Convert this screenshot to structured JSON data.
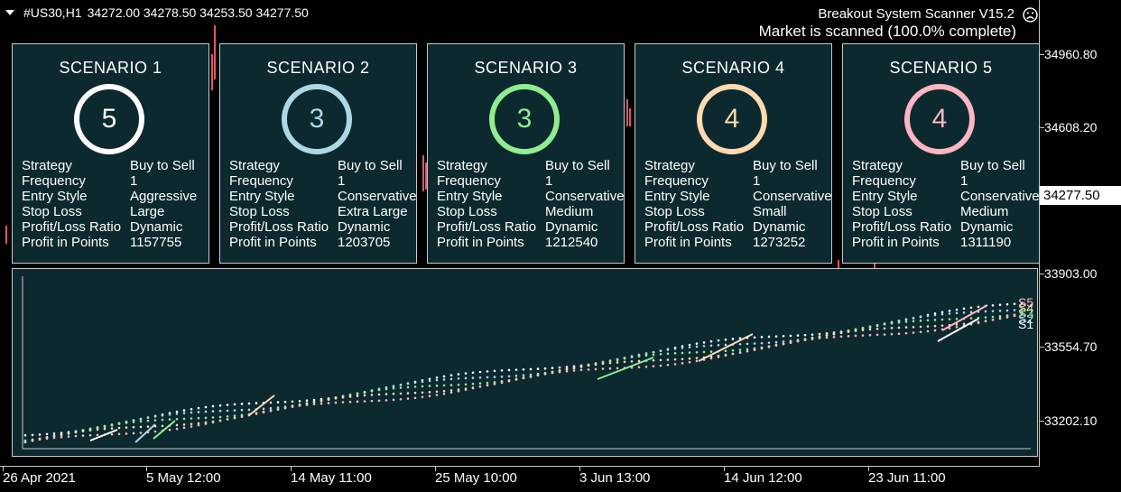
{
  "symbol": {
    "name": "#US30,H1",
    "ohlc": "34272.00 34278.50 34253.50 34277.50"
  },
  "header": {
    "title": "Breakout System Scanner V15.2",
    "status": "Market is scanned (100.0% complete)"
  },
  "price_axis": {
    "labels": [
      "34960.80",
      "34608.20",
      "34277.50",
      "33903.00",
      "33554.70",
      "33202.10"
    ],
    "current": "34277.50"
  },
  "time_axis": {
    "labels": [
      "26 Apr 2021",
      "5 May 12:00",
      "14 May 11:00",
      "25 May 10:00",
      "3 Jun 13:00",
      "14 Jun 12:00",
      "23 Jun 11:00"
    ]
  },
  "row_labels": [
    "Strategy",
    "Frequency",
    "Entry Style",
    "Stop Loss",
    "Profit/Loss Ratio",
    "Profit in Points"
  ],
  "scenarios": [
    {
      "title": "SCENARIO 1",
      "count": "5",
      "color": "#ffffff",
      "strategy": "Buy to Sell",
      "frequency": "1",
      "entry": "Aggressive",
      "stop": "Large",
      "ratio": "Dynamic",
      "profit": "1157755"
    },
    {
      "title": "SCENARIO 2",
      "count": "3",
      "color": "#add8e6",
      "strategy": "Buy to Sell",
      "frequency": "1",
      "entry": "Conservative",
      "stop": "Extra Large",
      "ratio": "Dynamic",
      "profit": "1203705"
    },
    {
      "title": "SCENARIO 3",
      "count": "3",
      "color": "#90ee90",
      "strategy": "Buy to Sell",
      "frequency": "1",
      "entry": "Conservative",
      "stop": "Medium",
      "ratio": "Dynamic",
      "profit": "1212540"
    },
    {
      "title": "SCENARIO 4",
      "count": "4",
      "color": "#ffdab0",
      "strategy": "Buy to Sell",
      "frequency": "1",
      "entry": "Conservative",
      "stop": "Small",
      "ratio": "Dynamic",
      "profit": "1273252"
    },
    {
      "title": "SCENARIO 5",
      "count": "4",
      "color": "#ffb6c1",
      "strategy": "Buy to Sell",
      "frequency": "1",
      "entry": "Conservative",
      "stop": "Medium",
      "ratio": "Dynamic",
      "profit": "1311190"
    }
  ],
  "equity_labels": [
    "S5",
    "S4",
    "S3",
    "S2",
    "S1"
  ]
}
